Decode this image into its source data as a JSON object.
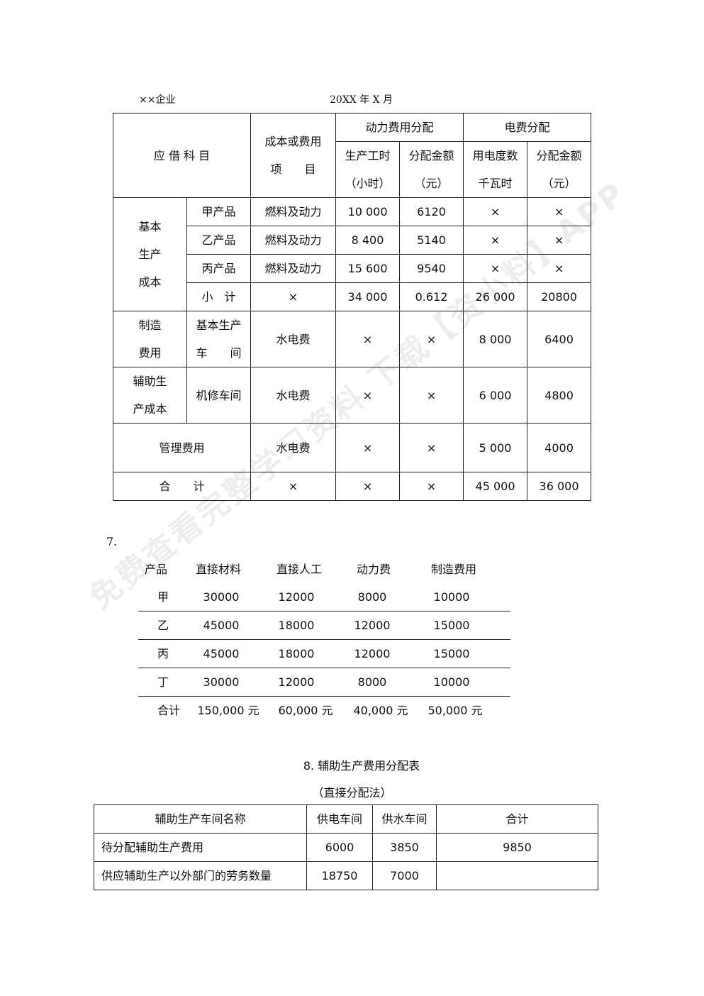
{
  "header": {
    "company": "××企业",
    "period": "20XX 年 X 月"
  },
  "table1": {
    "h_account": "应 借 科 目",
    "h_item1": "成本或费用",
    "h_item2": "项　　目",
    "h_power": "动力费用分配",
    "h_elec": "电费分配",
    "h_hours1": "生产工时",
    "h_hours2": "（小时）",
    "h_amt1": "分配金额",
    "h_amt2": "（元）",
    "h_kwh1": "用电度数",
    "h_kwh2": "千瓦时",
    "h_eamt1": "分配金额",
    "h_eamt2": "（元）",
    "group_basic": [
      "基本",
      "生产",
      "成本"
    ],
    "rows": [
      {
        "sub": "甲产品",
        "item": "燃料及动力",
        "hours": "10 000",
        "amt": "6120",
        "kwh": "×",
        "eamt": "×"
      },
      {
        "sub": "乙产品",
        "item": "燃料及动力",
        "hours": "8 400",
        "amt": "5140",
        "kwh": "×",
        "eamt": "×"
      },
      {
        "sub": "丙产品",
        "item": "燃料及动力",
        "hours": "15 600",
        "amt": "9540",
        "kwh": "×",
        "eamt": "×"
      },
      {
        "sub": "小　计",
        "item": "×",
        "hours": "34 000",
        "amt": "0.612",
        "kwh": "26 000",
        "eamt": "20800"
      }
    ],
    "mfg": {
      "g1": "制造",
      "g2": "费用",
      "s1": "基本生产",
      "s2": "车　　间",
      "item": "水电费",
      "hours": "×",
      "amt": "×",
      "kwh": "8 000",
      "eamt": "6400"
    },
    "aux": {
      "g1": "辅助生",
      "g2": "产成本",
      "sub": "机修车间",
      "item": "水电费",
      "hours": "×",
      "amt": "×",
      "kwh": "6 000",
      "eamt": "4800"
    },
    "admin": {
      "label": "管理费用",
      "item": "水电费",
      "hours": "×",
      "amt": "×",
      "kwh": "5 000",
      "eamt": "4000"
    },
    "total": {
      "label": "合　　计",
      "item": "×",
      "hours": "×",
      "amt": "×",
      "kwh": "45 000",
      "eamt": "36 000"
    }
  },
  "section7": {
    "number": "7.",
    "headers": [
      "产品",
      "直接材料",
      "直接人工",
      "动力费",
      "制造费用"
    ],
    "rows": [
      [
        "甲",
        "30000",
        "12000",
        "8000",
        "10000"
      ],
      [
        "乙",
        "45000",
        "18000",
        "12000",
        "15000"
      ],
      [
        "丙",
        "45000",
        "18000",
        "12000",
        "15000"
      ],
      [
        "丁",
        "30000",
        "12000",
        "8000",
        "10000"
      ],
      [
        "合计",
        "150,000 元",
        "60,000 元",
        "40,000 元",
        "50,000 元"
      ]
    ]
  },
  "section8": {
    "title": "8. 辅助生产费用分配表",
    "subtitle": "（直接分配法）",
    "headers": [
      "辅助生产车间名称",
      "供电车间",
      "供水车间",
      "合计"
    ],
    "rows": [
      [
        "待分配辅助生产费用",
        "6000",
        "3850",
        "9850"
      ],
      [
        "供应辅助生产以外部门的劳务数量",
        "18750",
        "7000",
        ""
      ]
    ]
  },
  "watermark": "免费查看完整学习资料 下载【资小料】APP"
}
